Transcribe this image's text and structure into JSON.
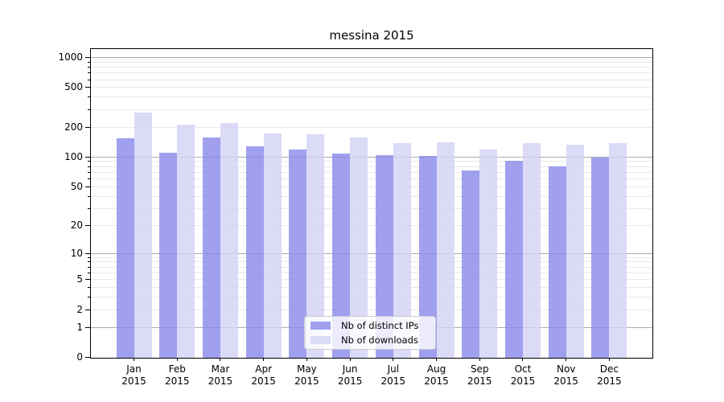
{
  "chart_data": {
    "type": "bar",
    "title": "messina 2015",
    "categories": [
      "Jan 2015",
      "Feb 2015",
      "Mar 2015",
      "Apr 2015",
      "May 2015",
      "Jun 2015",
      "Jul 2015",
      "Aug 2015",
      "Sep 2015",
      "Oct 2015",
      "Nov 2015",
      "Dec 2015"
    ],
    "series": [
      {
        "name": "Nb of distinct IPs",
        "legend_color": "#a0a0ef",
        "bar_fill": "rgba(139,139,235,0.82)",
        "values": [
          154,
          110,
          157,
          127,
          118,
          108,
          104,
          101,
          73,
          90,
          79,
          97
        ]
      },
      {
        "name": "Nb of downloads",
        "legend_color": "#dbdbf8",
        "bar_fill": "rgba(211,211,246,0.82)",
        "values": [
          278,
          212,
          217,
          172,
          167,
          156,
          138,
          139,
          119,
          137,
          132,
          138
        ]
      }
    ],
    "yscale": "log1p",
    "ylim": [
      0,
      1000
    ],
    "yticks": {
      "values": [
        0,
        1,
        2,
        5,
        10,
        20,
        50,
        100,
        200,
        500,
        1000
      ],
      "labels": [
        "0",
        "1",
        "2",
        "5",
        "10",
        "20",
        "50",
        "100",
        "200",
        "500",
        "1000"
      ]
    },
    "major_grid_values": [
      1,
      10,
      100,
      1000
    ],
    "grid": true,
    "legend_position": "lower center"
  },
  "colors": {
    "major_grid": "#ababab",
    "minor_grid": "#e9e9e9",
    "spine": "#000000",
    "text": "#000000",
    "legend_border": "#cccccc",
    "legend_bg": "rgba(255,255,255,0.8)",
    "background": "#ffffff"
  }
}
